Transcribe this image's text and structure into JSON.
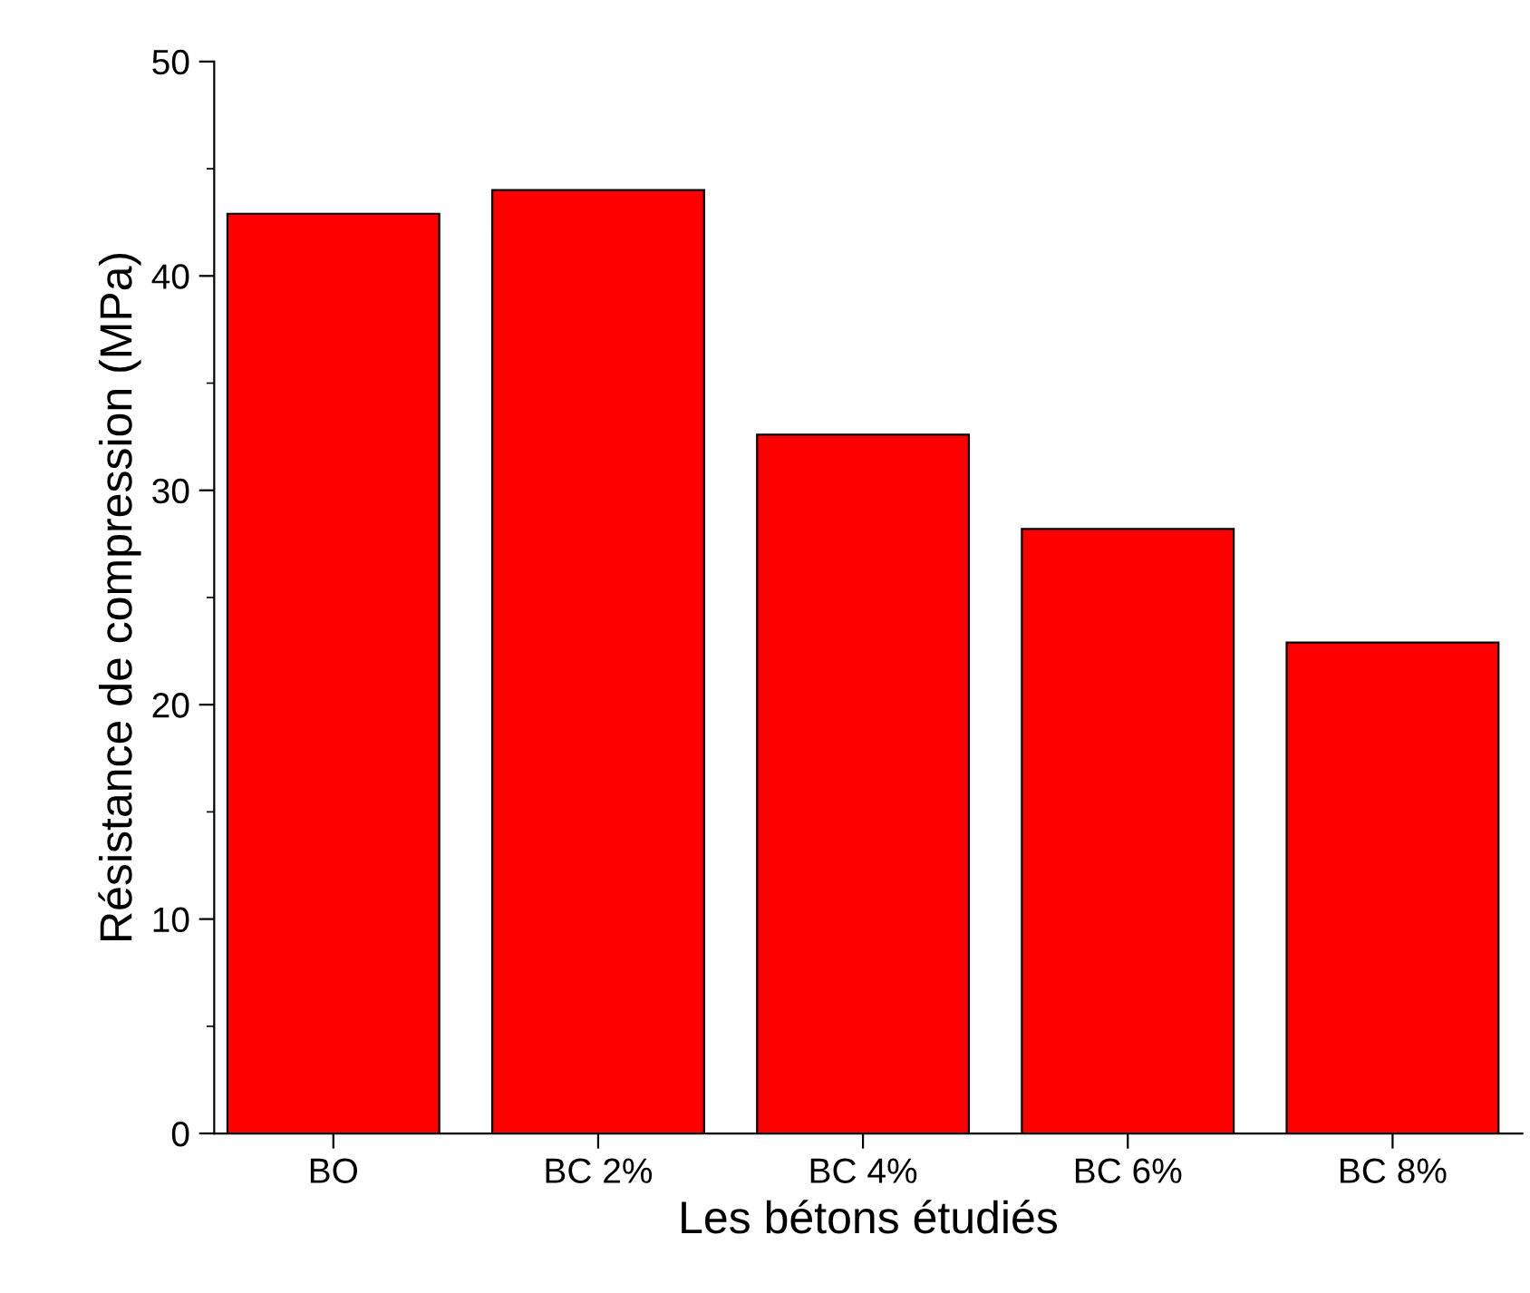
{
  "chart_data": {
    "type": "bar",
    "xlabel": "Les bétons étudiés",
    "ylabel": "Résistance de compression (MPa)",
    "categories": [
      "BO",
      "BC 2%",
      "BC 4%",
      "BC 6%",
      "BC 8%"
    ],
    "values": [
      42.9,
      44.0,
      32.6,
      28.2,
      22.9
    ],
    "color": "#ff0000",
    "ylim": [
      0,
      50
    ],
    "yticks": [
      0,
      10,
      20,
      30,
      40,
      50
    ],
    "grid": false,
    "legend": false
  }
}
